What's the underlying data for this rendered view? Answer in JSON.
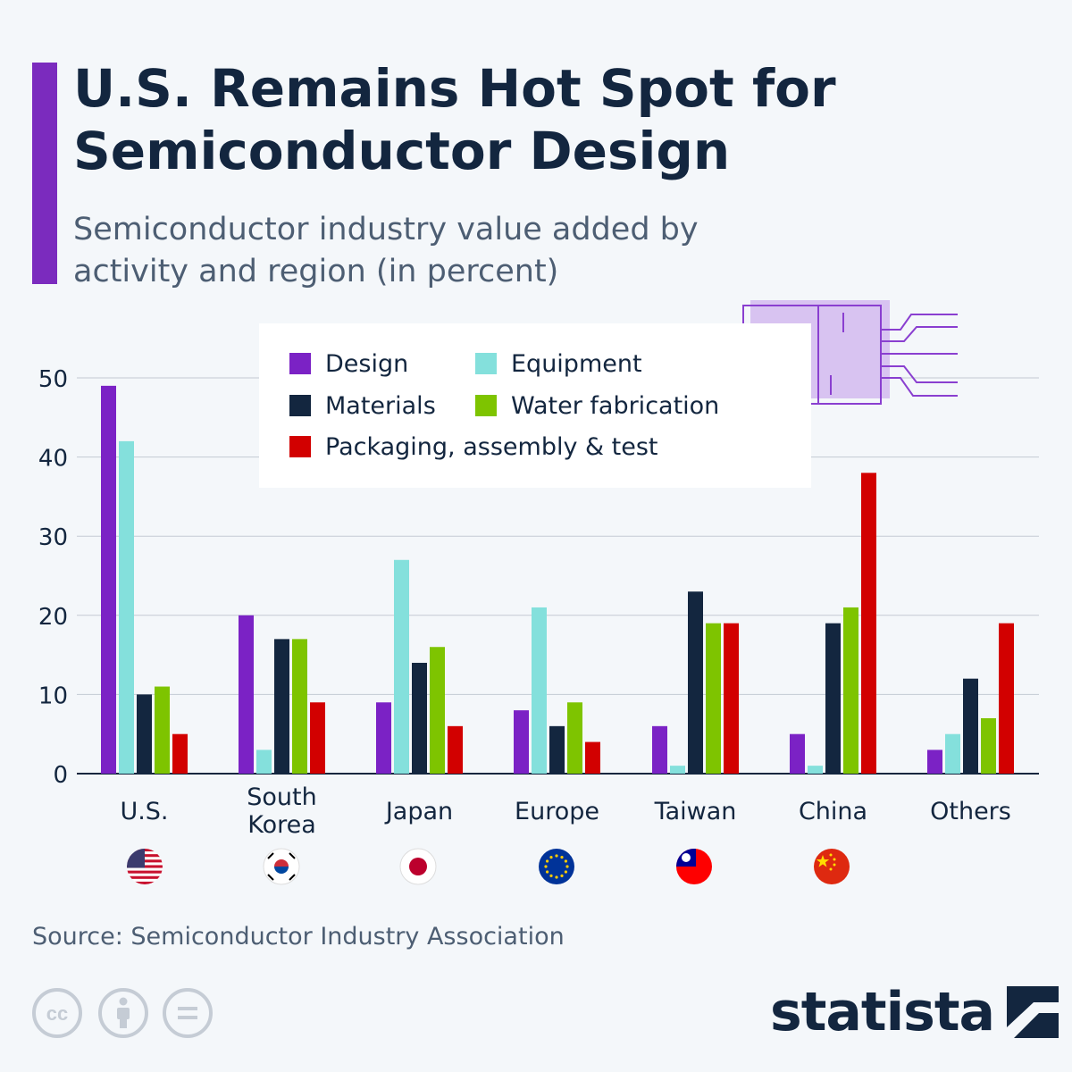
{
  "title": "U.S. Remains Hot Spot for Semiconductor Design",
  "subtitle": "Semiconductor industry value added by activity and region (in percent)",
  "source": "Source: Semiconductor Industry Association",
  "brand": "statista",
  "colors": {
    "accent": "#7b2bbe",
    "navy": "#13263f",
    "grid": "#c3cad3",
    "chip_fill": "#d8c3f1",
    "chip_stroke": "#8a3fd0"
  },
  "icons": {
    "chip": "microchip-icon",
    "license": [
      "cc-icon",
      "attribution-icon",
      "no-derivatives-icon"
    ],
    "brand_mark": "statista-logo-icon",
    "flags": [
      "us-flag-icon",
      "south-korea-flag-icon",
      "japan-flag-icon",
      "eu-flag-icon",
      "taiwan-flag-icon",
      "china-flag-icon"
    ]
  },
  "chart_data": {
    "type": "bar",
    "title": "U.S. Remains Hot Spot for Semiconductor Design",
    "subtitle": "Semiconductor industry value added by activity and region (in percent)",
    "categories": [
      "U.S.",
      "South Korea",
      "Japan",
      "Europe",
      "Taiwan",
      "China",
      "Others"
    ],
    "yticks": [
      0,
      10,
      20,
      30,
      40,
      50
    ],
    "ylim": [
      0,
      50
    ],
    "grid": true,
    "legend_position": "top",
    "series": [
      {
        "name": "Design",
        "color": "#7b22c5",
        "values": [
          49,
          20,
          9,
          8,
          6,
          5,
          3
        ]
      },
      {
        "name": "Equipment",
        "color": "#84e0dc",
        "values": [
          42,
          3,
          27,
          21,
          1,
          1,
          5
        ]
      },
      {
        "name": "Materials",
        "color": "#13263f",
        "values": [
          10,
          17,
          14,
          6,
          23,
          19,
          12
        ]
      },
      {
        "name": "Water fabrication",
        "color": "#7ec400",
        "values": [
          11,
          17,
          16,
          9,
          19,
          21,
          7
        ]
      },
      {
        "name": "Packaging, assembly & test",
        "color": "#d20000",
        "values": [
          5,
          9,
          6,
          4,
          19,
          38,
          19
        ]
      }
    ]
  }
}
